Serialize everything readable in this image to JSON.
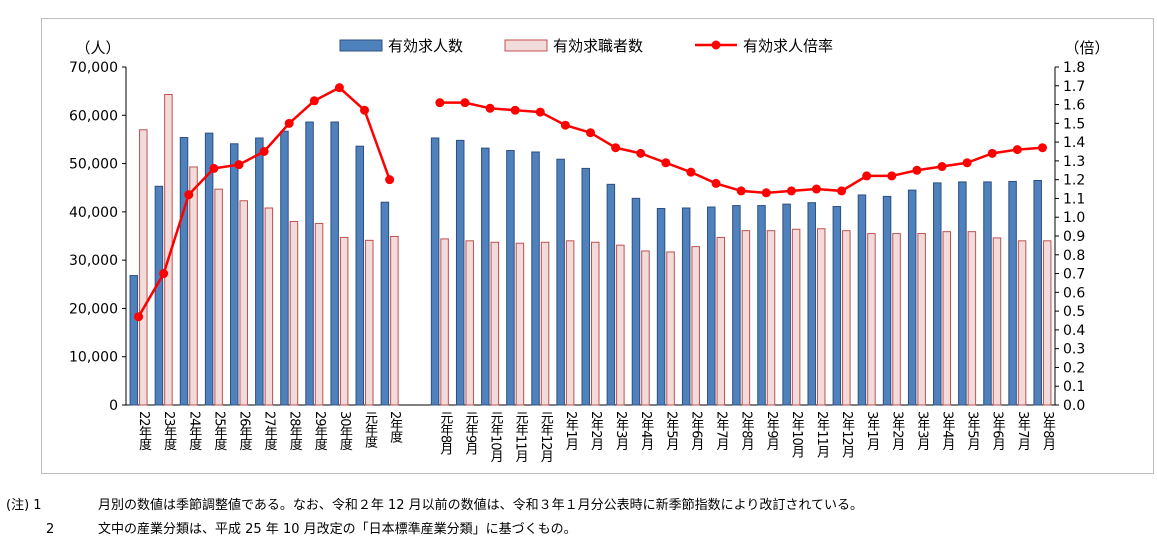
{
  "chart_data": {
    "type": "bar+line",
    "categories": [
      "22年度",
      "23年度",
      "24年度",
      "25年度",
      "26年度",
      "27年度",
      "28年度",
      "29年度",
      "30年度",
      "元年度",
      "2年度",
      "",
      "元年8月",
      "元年9月",
      "元年10月",
      "元年11月",
      "元年12月",
      "2年1月",
      "2年2月",
      "2年3月",
      "2年4月",
      "2年5月",
      "2年6月",
      "2年7月",
      "2年8月",
      "2年9月",
      "2年10月",
      "2年11月",
      "2年12月",
      "3年1月",
      "3年2月",
      "3年3月",
      "3年4月",
      "3年5月",
      "3年6月",
      "3年7月",
      "3年8月"
    ],
    "series": [
      {
        "name": "有効求人数",
        "kind": "bar",
        "axis": "left",
        "color": "#4f81bd",
        "values": [
          26800,
          45300,
          55400,
          56300,
          54100,
          55300,
          56700,
          58600,
          58600,
          53600,
          42000,
          null,
          55300,
          54800,
          53200,
          52700,
          52400,
          50900,
          49000,
          45700,
          42800,
          40700,
          40800,
          41000,
          41300,
          41300,
          41600,
          41900,
          41100,
          43500,
          43200,
          44500,
          46000,
          46200,
          46200,
          46300,
          46500
        ]
      },
      {
        "name": "有効求職者数",
        "kind": "bar",
        "axis": "left",
        "color": "#f2dcdb",
        "values": [
          57000,
          64300,
          49300,
          44700,
          42300,
          40800,
          38000,
          37600,
          34700,
          34100,
          34900,
          null,
          34400,
          34000,
          33700,
          33500,
          33700,
          34000,
          33700,
          33100,
          31900,
          31700,
          32800,
          34700,
          36100,
          36100,
          36400,
          36500,
          36100,
          35500,
          35500,
          35500,
          35900,
          35900,
          34600,
          34000,
          34000
        ]
      },
      {
        "name": "有効求人倍率",
        "kind": "line",
        "axis": "right",
        "color": "#ff0000",
        "values": [
          0.47,
          0.7,
          1.12,
          1.26,
          1.28,
          1.35,
          1.5,
          1.62,
          1.69,
          1.57,
          1.2,
          null,
          1.61,
          1.61,
          1.58,
          1.57,
          1.56,
          1.49,
          1.45,
          1.37,
          1.34,
          1.29,
          1.24,
          1.18,
          1.14,
          1.13,
          1.14,
          1.15,
          1.14,
          1.22,
          1.22,
          1.25,
          1.27,
          1.29,
          1.34,
          1.36,
          1.37
        ]
      }
    ],
    "y_left": {
      "label": "（人）",
      "min": 0,
      "max": 70000,
      "step": 10000,
      "ticks": [
        "0",
        "10,000",
        "20,000",
        "30,000",
        "40,000",
        "50,000",
        "60,000",
        "70,000"
      ]
    },
    "y_right": {
      "label": "（倍）",
      "min": 0,
      "max": 1.8,
      "step": 0.1,
      "ticks": [
        "0.0",
        "0.1",
        "0.2",
        "0.3",
        "0.4",
        "0.5",
        "0.6",
        "0.7",
        "0.8",
        "0.9",
        "1.0",
        "1.1",
        "1.2",
        "1.3",
        "1.4",
        "1.5",
        "1.6",
        "1.7",
        "1.8"
      ]
    },
    "legend_position": "top-center",
    "grid": false
  },
  "notes": [
    {
      "prefix": "(注) 1",
      "text": "月別の数値は季節調整値である。なお、令和２年 12 月以前の数値は、令和３年１月分公表時に新季節指数により改訂されている。"
    },
    {
      "prefix": "2",
      "text": "文中の産業分類は、平成 25 年 10 月改定の「日本標準産業分類」に基づくもの。"
    }
  ]
}
